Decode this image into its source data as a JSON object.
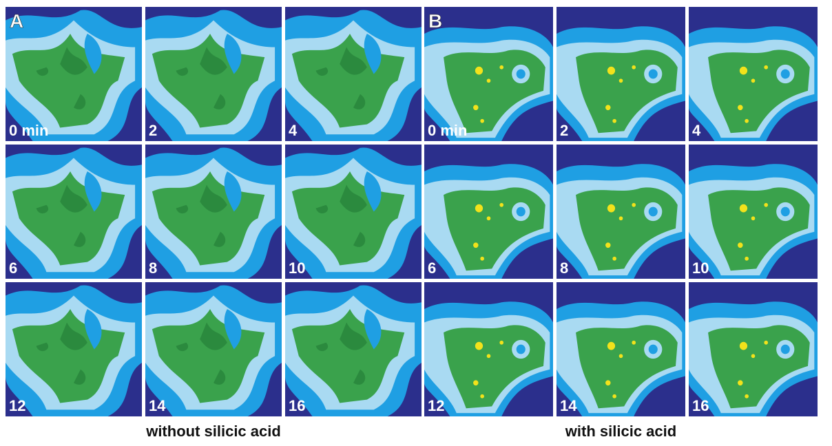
{
  "groups": [
    {
      "letter": "A",
      "caption": "without silicic acid",
      "frames": [
        "0 min",
        "2",
        "4",
        "6",
        "8",
        "10",
        "12",
        "14",
        "16"
      ]
    },
    {
      "letter": "B",
      "caption": "with silicic acid",
      "frames": [
        "0 min",
        "2",
        "4",
        "6",
        "8",
        "10",
        "12",
        "14",
        "16"
      ]
    }
  ]
}
